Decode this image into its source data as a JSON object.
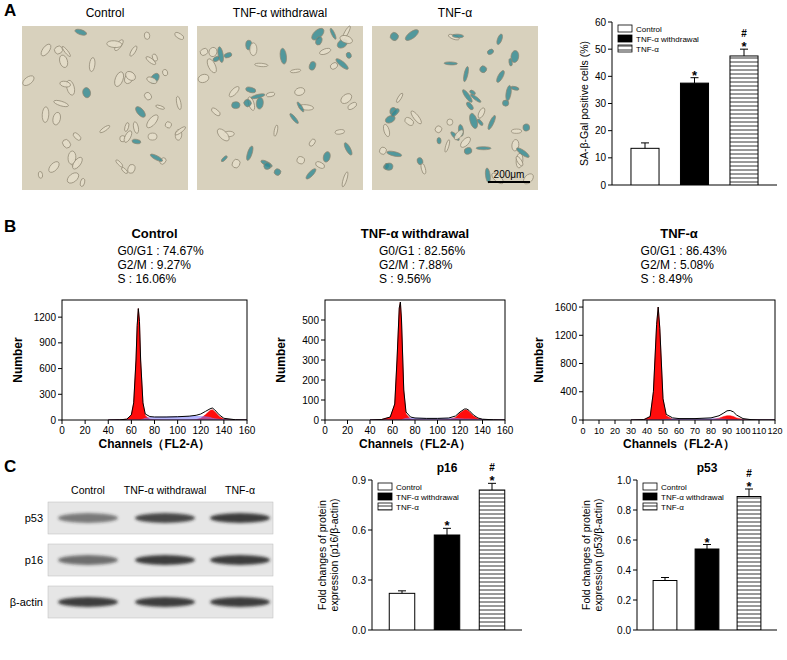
{
  "panel_labels": [
    "A",
    "B",
    "C"
  ],
  "micrographs": {
    "titles": [
      "Control",
      "TNF-α withdrawal",
      "TNF-α"
    ],
    "scale_bar": "200μm"
  },
  "blot": {
    "lanes": [
      "Control",
      "TNF-α withdrawal",
      "TNF-α"
    ],
    "bands": [
      "p53",
      "p16",
      "β-actin"
    ]
  },
  "chart_data": [
    {
      "type": "bar",
      "ylabel": [
        "SA-β-Gal positive cells (%)"
      ],
      "categories": [
        null
      ],
      "series": [
        {
          "name": "Control",
          "color": "#ffffff",
          "values": [
            13.5
          ],
          "errors": [
            2
          ]
        },
        {
          "name": "TNF-α withdrawal",
          "color": "#000000",
          "values": [
            37.5
          ],
          "errors": [
            2
          ]
        },
        {
          "name": "TNF-α",
          "color": "#ffffff",
          "line_style": "hatched",
          "values": [
            47.5
          ],
          "errors": [
            2.5
          ]
        }
      ],
      "annotations": [
        [],
        [
          "*"
        ],
        [
          "#",
          "*"
        ]
      ],
      "ylim": [
        0,
        60
      ],
      "yticks": [
        0,
        10,
        20,
        30,
        40,
        50,
        60
      ],
      "legend": "upper left",
      "tick_labels": "y"
    },
    {
      "type": "line",
      "title": "Control",
      "annotations": [
        "G0/G1 : 74.67%",
        "G2/M : 9.27%",
        "S : 16.06%"
      ],
      "xlabel": "Channels（FL2-A）",
      "ylabel": "Number",
      "x": [
        40,
        50,
        56,
        60,
        62,
        64,
        65,
        66,
        67,
        68,
        70,
        72,
        76,
        80,
        90,
        100,
        110,
        116,
        120,
        124,
        128,
        130,
        132,
        136,
        140,
        150,
        160
      ],
      "series": [
        {
          "type": "area",
          "color": "#ff0000",
          "values": [
            0,
            2,
            10,
            60,
            200,
            700,
            1100,
            1300,
            1150,
            700,
            200,
            50,
            10,
            2,
            0,
            0,
            0,
            5,
            20,
            60,
            110,
            120,
            100,
            40,
            10,
            0,
            0
          ]
        },
        {
          "type": "area",
          "color": "#8080ff",
          "values": [
            0,
            0,
            0,
            0,
            0,
            0,
            0,
            0,
            0,
            0,
            10,
            20,
            30,
            33,
            35,
            38,
            40,
            40,
            40,
            38,
            30,
            20,
            15,
            8,
            3,
            0,
            0
          ]
        },
        {
          "type": "line",
          "color": "#000000",
          "values": [
            0,
            2,
            10,
            60,
            200,
            700,
            1100,
            1300,
            1150,
            700,
            200,
            70,
            40,
            35,
            35,
            38,
            45,
            55,
            70,
            100,
            130,
            140,
            120,
            60,
            20,
            3,
            0
          ]
        }
      ],
      "xlim": [
        0,
        160
      ],
      "xticks": [
        0,
        20,
        40,
        60,
        80,
        100,
        120,
        140,
        160
      ],
      "ylim": [
        0,
        1400
      ],
      "yticks": [
        0,
        300,
        600,
        900,
        1200
      ]
    },
    {
      "type": "line",
      "title": "TNF-α withdrawal",
      "annotations": [
        "G0/G1 : 82.56%",
        "G2/M : 7.88%",
        "S : 9.56%"
      ],
      "xlabel": "Channels（FL2-A）",
      "ylabel": "Number",
      "x": [
        40,
        50,
        58,
        62,
        64,
        66,
        67,
        68,
        70,
        72,
        76,
        80,
        90,
        100,
        110,
        116,
        120,
        124,
        126,
        128,
        132,
        136,
        140,
        150,
        160
      ],
      "series": [
        {
          "type": "area",
          "color": "#ff0000",
          "values": [
            0,
            2,
            15,
            80,
            300,
            560,
            590,
            500,
            150,
            30,
            5,
            1,
            0,
            0,
            2,
            12,
            35,
            50,
            50,
            42,
            20,
            6,
            2,
            0,
            0
          ]
        },
        {
          "type": "area",
          "color": "#8080ff",
          "values": [
            0,
            0,
            0,
            0,
            0,
            0,
            0,
            0,
            5,
            8,
            10,
            9,
            8,
            8,
            8,
            8,
            6,
            5,
            5,
            5,
            4,
            3,
            2,
            0,
            0
          ]
        },
        {
          "type": "line",
          "color": "#000000",
          "values": [
            0,
            2,
            15,
            80,
            300,
            560,
            590,
            500,
            150,
            40,
            15,
            10,
            8,
            8,
            10,
            20,
            40,
            55,
            55,
            48,
            25,
            10,
            4,
            1,
            0
          ]
        }
      ],
      "xlim": [
        0,
        160
      ],
      "xticks": [
        0,
        20,
        40,
        60,
        80,
        100,
        120,
        140,
        160
      ],
      "ylim": [
        0,
        600
      ],
      "yticks": [
        0,
        100,
        200,
        300,
        400,
        500
      ]
    },
    {
      "type": "line",
      "title": "TNF-α",
      "annotations": [
        "G0/G1 : 86.43%",
        "G2/M : 5.08%",
        "S : 8.49%"
      ],
      "xlabel": "Channels（FL2-A）",
      "ylabel": "Number",
      "x": [
        30,
        38,
        42,
        44,
        46,
        47,
        48,
        50,
        52,
        56,
        60,
        70,
        80,
        85,
        88,
        90,
        92,
        94,
        96,
        100,
        105,
        110,
        120
      ],
      "series": [
        {
          "type": "area",
          "color": "#ff0000",
          "values": [
            0,
            5,
            50,
            400,
            1350,
            1600,
            1300,
            300,
            60,
            10,
            2,
            0,
            5,
            25,
            50,
            60,
            60,
            50,
            30,
            8,
            1,
            0,
            0
          ]
        },
        {
          "type": "area",
          "color": "#8080ff",
          "values": [
            0,
            0,
            0,
            0,
            0,
            0,
            0,
            5,
            10,
            15,
            17,
            18,
            18,
            16,
            12,
            8,
            5,
            3,
            2,
            0,
            0,
            0,
            0
          ]
        },
        {
          "type": "line",
          "color": "#000000",
          "values": [
            0,
            5,
            50,
            400,
            1350,
            1600,
            1300,
            300,
            80,
            30,
            20,
            20,
            30,
            60,
            100,
            130,
            135,
            115,
            70,
            20,
            5,
            1,
            0
          ]
        }
      ],
      "xlim": [
        0,
        120
      ],
      "xticks": [
        0,
        10,
        20,
        30,
        40,
        50,
        60,
        70,
        80,
        90,
        100,
        110,
        120
      ],
      "ylim": [
        0,
        1700
      ],
      "yticks": [
        0,
        400,
        800,
        1200,
        1600
      ]
    },
    {
      "type": "bar",
      "title": "p16",
      "ylabel": [
        "Fold changes of protein",
        "expression (p16/β-actin)"
      ],
      "categories": [
        null
      ],
      "series": [
        {
          "name": "Control",
          "color": "#ffffff",
          "values": [
            0.22
          ],
          "errors": [
            0.015
          ]
        },
        {
          "name": "TNF-α withdrawal",
          "color": "#000000",
          "values": [
            0.57
          ],
          "errors": [
            0.04
          ]
        },
        {
          "name": "TNF-α",
          "color": "#ffffff",
          "line_style": "hatched",
          "values": [
            0.84
          ],
          "errors": [
            0.04
          ]
        }
      ],
      "annotations": [
        [],
        [
          "*"
        ],
        [
          "#",
          "*"
        ]
      ],
      "ylim": [
        0,
        0.9
      ],
      "yticks": [
        {
          "value": 0,
          "label": "0.0"
        },
        0.3,
        0.6,
        0.9
      ],
      "legend": "upper left",
      "tick_labels": "y"
    },
    {
      "type": "bar",
      "title": "p53",
      "ylabel": [
        "Fold changes of protein",
        "expression (p53/β-actin)"
      ],
      "categories": [
        null
      ],
      "series": [
        {
          "name": "Control",
          "color": "#ffffff",
          "values": [
            0.33
          ],
          "errors": [
            0.02
          ]
        },
        {
          "name": "TNF-α withdrawal",
          "color": "#000000",
          "values": [
            0.54
          ],
          "errors": [
            0.03
          ]
        },
        {
          "name": "TNF-α",
          "color": "#ffffff",
          "line_style": "hatched",
          "values": [
            0.89
          ],
          "errors": [
            0.05
          ]
        }
      ],
      "annotations": [
        [],
        [
          "*"
        ],
        [
          "#",
          "*"
        ]
      ],
      "ylim": [
        0,
        1.0
      ],
      "yticks": [
        {
          "value": 0,
          "label": "0.0"
        },
        0.2,
        0.4,
        0.6,
        0.8,
        {
          "value": 1,
          "label": "1.0"
        }
      ],
      "legend": "upper left",
      "tick_labels": "y"
    }
  ]
}
